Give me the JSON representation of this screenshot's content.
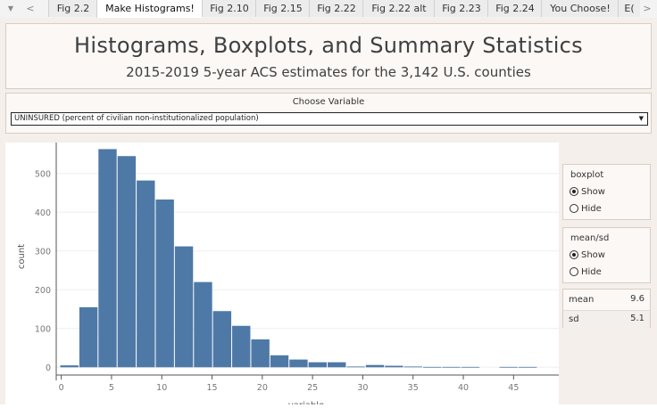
{
  "tab_bar": {
    "scroll_down": "▼",
    "scroll_left": "<",
    "scroll_right": ">",
    "tabs": [
      {
        "label": "Fig 2.2"
      },
      {
        "label": "Make Histograms!"
      },
      {
        "label": "Fig 2.10"
      },
      {
        "label": "Fig 2.15"
      },
      {
        "label": "Fig 2.22"
      },
      {
        "label": "Fig 2.22 alt"
      },
      {
        "label": "Fig 2.23"
      },
      {
        "label": "Fig 2.24"
      },
      {
        "label": "You Choose!"
      },
      {
        "label": "E("
      }
    ],
    "active_tab": "Make Histograms!"
  },
  "header": {
    "title": "Histograms, Boxplots, and Summary Statistics",
    "subtitle": "2015-2019 5-year ACS estimates for the 3,142 U.S. counties"
  },
  "variable_chooser": {
    "label": "Choose Variable",
    "selected": "UNINSURED (percent of civilian non-institutionalized population)"
  },
  "boxplot_control": {
    "title": "boxplot",
    "options": [
      "Show",
      "Hide"
    ],
    "selected": "Show"
  },
  "meansd_control": {
    "title": "mean/sd",
    "options": [
      "Show",
      "Hide"
    ],
    "selected": "Show"
  },
  "stats": {
    "mean_label": "mean",
    "mean_value": "9.6",
    "sd_label": "sd",
    "sd_value": "5.1"
  },
  "colors": {
    "bar": "#4e79a7",
    "background": "#f5efeb",
    "panel": "#fbf8f6"
  },
  "chart_data": {
    "type": "bar",
    "bin_width": 1.9,
    "bins": [
      {
        "start": -0.1,
        "end": 1.8,
        "count": 5
      },
      {
        "start": 1.8,
        "end": 3.7,
        "count": 155
      },
      {
        "start": 3.7,
        "end": 5.6,
        "count": 563
      },
      {
        "start": 5.6,
        "end": 7.5,
        "count": 545
      },
      {
        "start": 7.5,
        "end": 9.4,
        "count": 482
      },
      {
        "start": 9.4,
        "end": 11.3,
        "count": 433
      },
      {
        "start": 11.3,
        "end": 13.2,
        "count": 312
      },
      {
        "start": 13.2,
        "end": 15.1,
        "count": 220
      },
      {
        "start": 15.1,
        "end": 17.0,
        "count": 145
      },
      {
        "start": 17.0,
        "end": 18.9,
        "count": 107
      },
      {
        "start": 18.9,
        "end": 20.8,
        "count": 72
      },
      {
        "start": 20.8,
        "end": 22.7,
        "count": 31
      },
      {
        "start": 22.7,
        "end": 24.6,
        "count": 20
      },
      {
        "start": 24.6,
        "end": 26.5,
        "count": 13
      },
      {
        "start": 26.5,
        "end": 28.4,
        "count": 13
      },
      {
        "start": 28.4,
        "end": 30.3,
        "count": 2
      },
      {
        "start": 30.3,
        "end": 32.2,
        "count": 6
      },
      {
        "start": 32.2,
        "end": 34.1,
        "count": 4
      },
      {
        "start": 34.1,
        "end": 36.0,
        "count": 2
      },
      {
        "start": 36.0,
        "end": 37.9,
        "count": 1
      },
      {
        "start": 37.9,
        "end": 39.8,
        "count": 1
      },
      {
        "start": 39.8,
        "end": 41.7,
        "count": 1
      },
      {
        "start": 41.7,
        "end": 43.6,
        "count": 0
      },
      {
        "start": 43.6,
        "end": 45.5,
        "count": 1
      },
      {
        "start": 45.5,
        "end": 47.4,
        "count": 1
      }
    ],
    "xlabel": "variable",
    "ylabel": "count",
    "xlim": [
      -0.5,
      49.5
    ],
    "ylim": [
      -20,
      580
    ],
    "xticks": [
      0,
      5,
      10,
      15,
      20,
      25,
      30,
      35,
      40,
      45
    ],
    "yticks": [
      0,
      100,
      200,
      300,
      400,
      500
    ]
  }
}
